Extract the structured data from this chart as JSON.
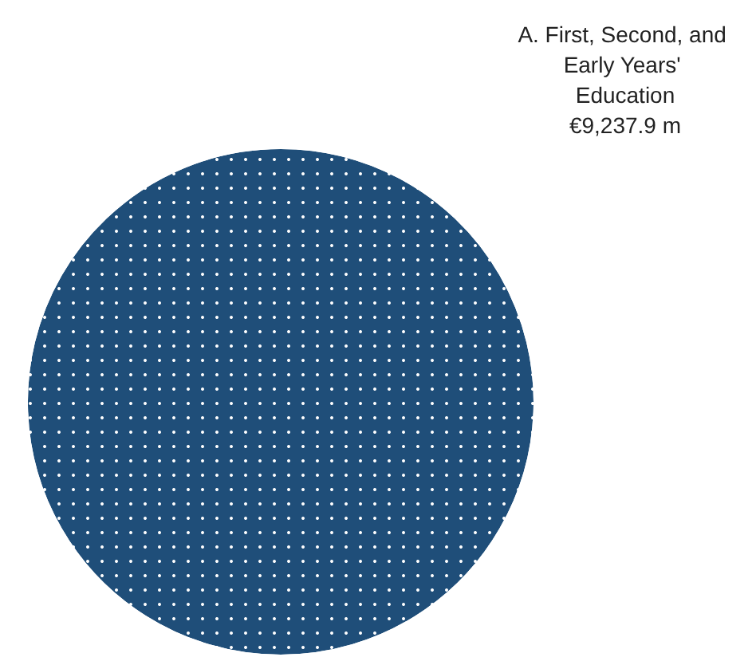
{
  "chart_data": {
    "type": "pie",
    "categories": [
      "A. First, Second, and Early Years' Education"
    ],
    "values": [
      9237.9
    ],
    "value_labels": [
      "€9,237.9 m"
    ],
    "colors": [
      "#1f4e79"
    ],
    "legend": false
  }
}
